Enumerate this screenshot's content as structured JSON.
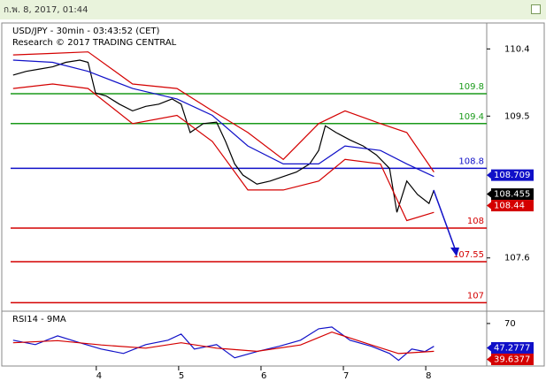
{
  "header": {
    "timestamp": "ก.พ. 8, 2017, 01:44"
  },
  "chart_data": [
    {
      "type": "line",
      "title": "USD/JPY - 30min - 03:43:52 (CET)",
      "subtitle": "Research © 2017 TRADING CENTRAL",
      "xlim": [
        2.96,
        8.74
      ],
      "ylim": [
        106.91,
        110.7
      ],
      "yticks": [
        107.6,
        109.5,
        110.4
      ],
      "series": [
        {
          "color": "#000000",
          "x": [
            2.99,
            3.15,
            3.31,
            3.47,
            3.63,
            3.8,
            3.9,
            3.99,
            4.12,
            4.28,
            4.44,
            4.6,
            4.76,
            4.92,
            5.03,
            5.14,
            5.3,
            5.46,
            5.57,
            5.68,
            5.78,
            5.95,
            6.11,
            6.27,
            6.43,
            6.59,
            6.7,
            6.78,
            6.91,
            7.08,
            7.24,
            7.4,
            7.56,
            7.65,
            7.77,
            7.9,
            8.04,
            8.1
          ],
          "values": [
            110.05,
            110.1,
            110.13,
            110.16,
            110.22,
            110.25,
            110.22,
            109.81,
            109.77,
            109.66,
            109.57,
            109.63,
            109.66,
            109.73,
            109.66,
            109.28,
            109.4,
            109.42,
            109.16,
            108.86,
            108.71,
            108.59,
            108.63,
            108.69,
            108.75,
            108.86,
            109.04,
            109.37,
            109.28,
            109.18,
            109.1,
            108.98,
            108.8,
            108.21,
            108.63,
            108.45,
            108.33,
            108.51
          ]
        },
        {
          "color": "#d40000",
          "x": [
            2.99,
            3.47,
            3.9,
            4.44,
            4.98,
            5.41,
            5.84,
            6.27,
            6.7,
            7.02,
            7.45,
            7.77,
            8.1
          ],
          "values": [
            110.32,
            110.34,
            110.36,
            109.93,
            109.87,
            109.57,
            109.28,
            108.92,
            109.4,
            109.57,
            109.4,
            109.28,
            108.75
          ]
        },
        {
          "color": "#d40000",
          "x": [
            2.99,
            3.47,
            3.9,
            4.44,
            4.98,
            5.41,
            5.84,
            6.27,
            6.7,
            7.02,
            7.45,
            7.77,
            8.1
          ],
          "values": [
            109.87,
            109.93,
            109.87,
            109.4,
            109.51,
            109.16,
            108.51,
            108.51,
            108.63,
            108.92,
            108.86,
            108.1,
            108.21
          ]
        },
        {
          "color": "#1010c8",
          "x": [
            2.99,
            3.47,
            3.9,
            4.44,
            4.98,
            5.41,
            5.84,
            6.27,
            6.7,
            7.02,
            7.45,
            7.77,
            8.1
          ],
          "values": [
            110.25,
            110.22,
            110.1,
            109.87,
            109.73,
            109.51,
            109.1,
            108.86,
            108.86,
            109.1,
            109.04,
            108.86,
            108.69
          ]
        }
      ],
      "levels": [
        {
          "value": 109.8,
          "color": "#1a9a1a"
        },
        {
          "value": 109.4,
          "color": "#1a9a1a"
        },
        {
          "value": 108.8,
          "color": "#1010c8"
        },
        {
          "value": 108,
          "color": "#d40000"
        },
        {
          "value": 107.55,
          "color": "#d40000"
        },
        {
          "value": 107,
          "color": "#d40000"
        }
      ],
      "price_tags": [
        {
          "value": 108.709,
          "color": "#1010c8"
        },
        {
          "value": 108.455,
          "color": "#000000"
        },
        {
          "value": 108.44,
          "color": "#d40000"
        }
      ]
    },
    {
      "type": "line",
      "title": "RSI14 - 9MA",
      "xlim": [
        2.96,
        8.74
      ],
      "xticks": [
        4,
        5,
        6,
        7,
        8
      ],
      "ylim": [
        32,
        79
      ],
      "yticks": [
        70
      ],
      "series": [
        {
          "color": "#1010c8",
          "x": [
            2.99,
            3.26,
            3.53,
            3.8,
            4.06,
            4.33,
            4.6,
            4.87,
            5.03,
            5.19,
            5.46,
            5.68,
            5.95,
            6.22,
            6.48,
            6.7,
            6.86,
            7.08,
            7.34,
            7.56,
            7.67,
            7.83,
            7.99,
            8.1
          ],
          "values": [
            54.4,
            50.3,
            58.5,
            52,
            46.2,
            42.1,
            50.3,
            54.4,
            60.2,
            46.2,
            50.3,
            38,
            43.8,
            48.7,
            54.4,
            65.1,
            66.7,
            54.4,
            48.7,
            42.1,
            35.6,
            46.2,
            43.8,
            48.7
          ]
        },
        {
          "color": "#d40000",
          "x": [
            2.99,
            3.53,
            4.06,
            4.6,
            5.03,
            5.46,
            5.95,
            6.48,
            6.86,
            7.34,
            7.67,
            8.1
          ],
          "values": [
            52,
            54,
            50,
            47,
            52,
            47,
            44,
            50,
            62,
            50,
            42,
            44
          ]
        }
      ],
      "price_tags": [
        {
          "value": 47.2777,
          "color": "#1010c8"
        },
        {
          "value": 39.6377,
          "color": "#d40000"
        }
      ]
    }
  ]
}
